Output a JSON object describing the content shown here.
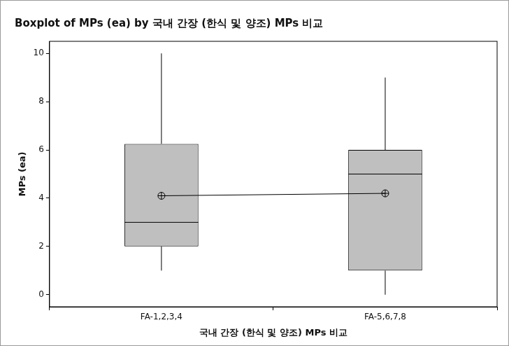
{
  "chart_data": {
    "type": "boxplot",
    "title": "Boxplot of MPs (ea) by 국내 간장 (한식 및 양조) MPs 비교",
    "x_label": "국내 간장 (한식 및 양조) MPs 비교",
    "y_label": "MPs (ea)",
    "categories": [
      "FA-1,2,3,4",
      "FA-5,6,7,8"
    ],
    "min": [
      1,
      0
    ],
    "q1": [
      2,
      1
    ],
    "median": [
      3,
      5
    ],
    "q3": [
      6.25,
      6
    ],
    "max": [
      10,
      9
    ],
    "mean": [
      4.1,
      4.2
    ],
    "color": "#bfbfbf",
    "marker": "circle-plus",
    "ylim": [
      -0.5,
      10.5
    ],
    "yticks": [
      0,
      2,
      4,
      6,
      8,
      10
    ],
    "grid": false
  }
}
